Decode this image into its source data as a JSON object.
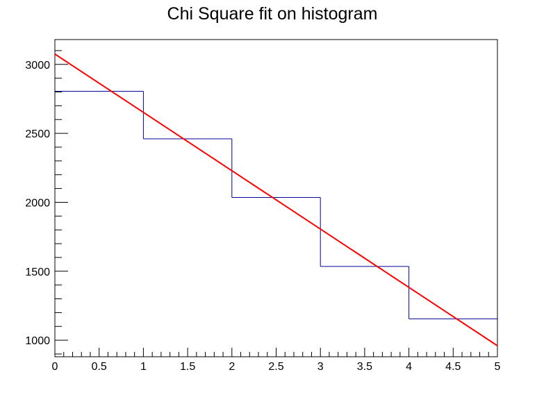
{
  "chart_data": {
    "type": "bar",
    "title": "Chi Square fit on histogram",
    "xlabel": "",
    "ylabel": "",
    "xlim": [
      0,
      5
    ],
    "ylim": [
      880,
      3180
    ],
    "x_ticks": [
      0,
      0.5,
      1,
      1.5,
      2,
      2.5,
      3,
      3.5,
      4,
      4.5,
      5
    ],
    "x_tick_labels": [
      "0",
      "0.5",
      "1",
      "1.5",
      "2",
      "2.5",
      "3",
      "3.5",
      "4",
      "4.5",
      "5"
    ],
    "y_ticks": [
      1000,
      1500,
      2000,
      2500,
      3000
    ],
    "y_tick_labels": [
      "1000",
      "1500",
      "2000",
      "2500",
      "3000"
    ],
    "grid": false,
    "histogram": {
      "bin_edges": [
        0,
        1,
        2,
        3,
        4,
        5
      ],
      "values": [
        2805,
        2460,
        2035,
        1535,
        1155
      ],
      "color": "#000099"
    },
    "fit_line": {
      "x": [
        0,
        5
      ],
      "y": [
        3075,
        960
      ],
      "color": "#ff0000"
    }
  }
}
